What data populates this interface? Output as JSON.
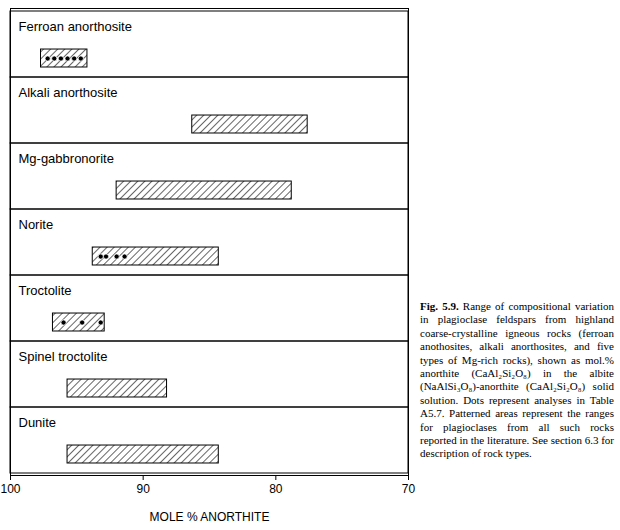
{
  "chart_data": {
    "type": "range",
    "categories": [
      "Ferroan anorthosite",
      "Alkali anorthosite",
      "Mg-gabbronorite",
      "Norite",
      "Troctolite",
      "Spinel troctolite",
      "Dunite"
    ],
    "ranges": [
      [
        97.7,
        94.2
      ],
      [
        86.3,
        77.6
      ],
      [
        92.0,
        78.8
      ],
      [
        93.8,
        84.3
      ],
      [
        96.8,
        92.9
      ],
      [
        95.7,
        88.2
      ],
      [
        95.7,
        84.3
      ]
    ],
    "points": [
      [
        97.2,
        96.7,
        96.2,
        95.7,
        95.2,
        94.7
      ],
      [],
      [],
      [
        93.2,
        92.8,
        92.0,
        91.4
      ],
      [
        96.0,
        94.6,
        93.2
      ],
      [],
      []
    ],
    "xlim": [
      100,
      70
    ],
    "xticks": [
      100,
      90,
      80,
      70
    ],
    "xlabel": "MOLE % ANORTHITE",
    "caption_label": "Fig. 5.9.",
    "caption": "Range of compositional variation in plagioclase feldspars from highland coarse-crystalline igneous rocks (ferroan anothosites, alkali anorthosites, and five types of Mg-rich rocks), shown as mol.% anorthite (CaAl₂Si₂O₈) in the albite (NaAlSi₃O₈)-anorthite (CaAl₂Si₂O₈) solid solution. Dots represent analyses in Table A5.7. Patterned areas represent the ranges for plagioclases from all such rocks reported in the literature. See section 6.3 for description of rock types."
  }
}
